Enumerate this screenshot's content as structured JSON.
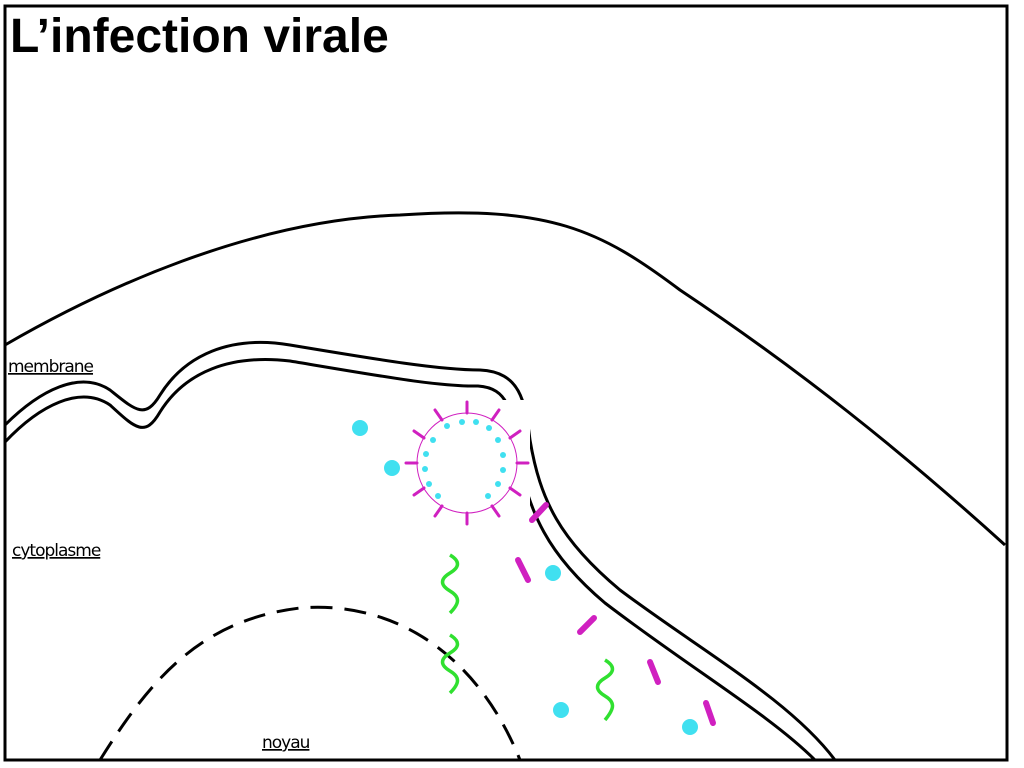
{
  "header": {
    "title": "L’infection virale"
  },
  "labels": [
    "membrane",
    "cytoplasme",
    "noyau"
  ]
}
